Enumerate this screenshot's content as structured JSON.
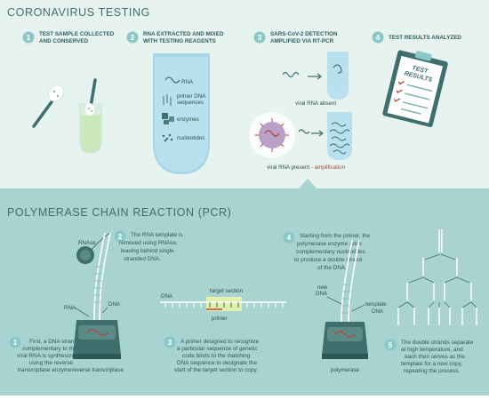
{
  "title_top": "CORONAVIRUS TESTING",
  "title_bottom": "POLYMERASE CHAIN REACTION (PCR)",
  "colors": {
    "top_bg": "#e7f3ef",
    "bottom_bg": "#a9d3d1",
    "accent": "#7fc4c4",
    "red": "#b1443c",
    "machine": "#3f6f6d"
  },
  "top_steps": [
    {
      "num": "1",
      "lines": [
        "TEST SAMPLE COLLECTED",
        "AND CONSERVED"
      ]
    },
    {
      "num": "2",
      "lines": [
        "RNA EXTRACTED AND MIXED",
        "WITH TESTING REAGENTS"
      ]
    },
    {
      "num": "3",
      "lines": [
        "SARS-CoV-2 DETECTION",
        "AMPLIFIED VIA RT-PCR"
      ]
    },
    {
      "num": "4",
      "lines": [
        "TEST RESULTS ANALYZED"
      ]
    }
  ],
  "reagents": {
    "rna": "RNA",
    "primer": [
      "primer DNA",
      "sequences"
    ],
    "enzymes": "enzymes",
    "nucleotides": "nucleotides"
  },
  "detection": {
    "absent": "viral RNA absent",
    "present": "viral RNA present",
    "separator": " - ",
    "amplification": "amplification"
  },
  "clipboard": [
    "TEST",
    "RESULTS"
  ],
  "pcr_steps": [
    {
      "num": "1",
      "lines": [
        "First, a DNA strand",
        "complementary to the",
        "viral RNA is synthesized",
        "using the reverse",
        "transcriptase enzyme."
      ]
    },
    {
      "num": "2",
      "lines": [
        "The RNA template is",
        "removed using RNAse,",
        "leaving behind single",
        "stranded DNA."
      ]
    },
    {
      "num": "3",
      "lines": [
        "A primer designed to recognize",
        "a particular sequence of genetic",
        "code binds to the matching",
        "DNA sequence to designate the",
        "start of the target section to copy."
      ]
    },
    {
      "num": "4",
      "lines": [
        "Starting from the primer, the",
        "polymerase enzyme adds",
        "complementary nucleotides",
        "to produce a double strand",
        "of the DNA."
      ]
    },
    {
      "num": "5",
      "lines": [
        "The double strands separate",
        "at high temperature, and",
        "each then serves as the",
        "template for a new copy,",
        "repeating the process."
      ]
    }
  ],
  "pcr_labels": {
    "rnase": "RNAse",
    "rna": "RNA",
    "dna": "DNA",
    "reverse_transcriptase": "reverse transcriptase",
    "dna2": "DNA",
    "target_section": "target section",
    "primer": "primer",
    "new_dna": [
      "new",
      "DNA"
    ],
    "template_dna": [
      "template",
      "DNA"
    ],
    "polymerase": "polymerase"
  }
}
